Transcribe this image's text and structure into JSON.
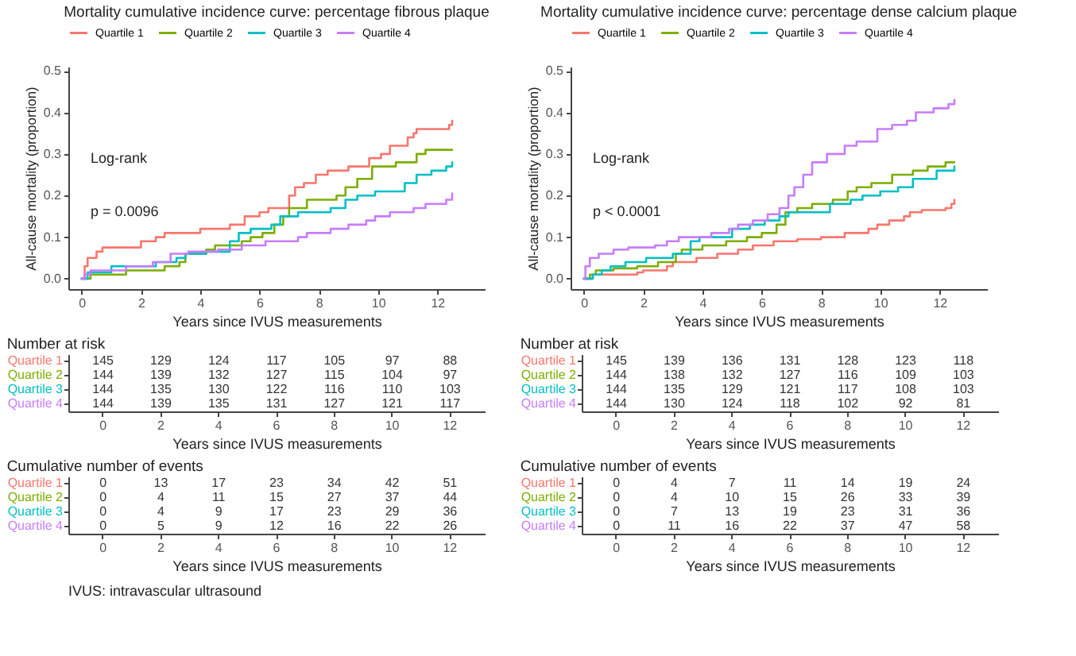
{
  "chart_data": [
    {
      "type": "step",
      "title": "Mortality cumulative incidence curve: percentage fibrous plaque",
      "xlabel": "Years since IVUS measurements",
      "ylabel": "All-cause mortality (proportion)",
      "legend": "top",
      "grid": false,
      "xlim": [
        -0.45,
        13.6
      ],
      "ylim": [
        -0.025,
        0.51
      ],
      "xticks": [
        0,
        2,
        4,
        6,
        8,
        10,
        12
      ],
      "yticks": [
        {
          "value": 0,
          "label": "0.0"
        },
        {
          "value": 0.1,
          "label": "0.1"
        },
        {
          "value": 0.2,
          "label": "0.2"
        },
        {
          "value": 0.3,
          "label": "0.3"
        },
        {
          "value": 0.4,
          "label": "0.4"
        },
        {
          "value": 0.5,
          "label": "0.5"
        }
      ],
      "annotations": [
        "Log-rank",
        "p = 0.0096"
      ],
      "series": [
        {
          "name": "Quartile 1",
          "color": "#f8766d",
          "x": [
            0,
            0.1,
            0.2,
            0.5,
            0.7,
            2,
            2.5,
            2.8,
            4,
            5,
            5.5,
            6,
            6.3,
            7,
            7.2,
            7.5,
            7.9,
            8.3,
            9,
            9.7,
            10.1,
            10.4,
            11,
            11.2,
            11.3,
            12.4,
            12.5
          ],
          "values": [
            0,
            0.03,
            0.05,
            0.065,
            0.075,
            0.09,
            0.1,
            0.11,
            0.12,
            0.13,
            0.15,
            0.16,
            0.17,
            0.2,
            0.22,
            0.23,
            0.25,
            0.26,
            0.27,
            0.29,
            0.3,
            0.32,
            0.34,
            0.35,
            0.36,
            0.37,
            0.38
          ]
        },
        {
          "name": "Quartile 2",
          "color": "#7cae00",
          "x": [
            0,
            0.3,
            1.5,
            2.8,
            3.3,
            3.5,
            4.2,
            4.5,
            5.4,
            5.7,
            6.1,
            6.5,
            6.8,
            7,
            7.6,
            8.6,
            8.9,
            9.3,
            9.8,
            10.6,
            11.3,
            11.6,
            12.5
          ],
          "values": [
            0,
            0.01,
            0.02,
            0.03,
            0.04,
            0.06,
            0.07,
            0.08,
            0.09,
            0.1,
            0.11,
            0.13,
            0.15,
            0.17,
            0.19,
            0.2,
            0.22,
            0.24,
            0.27,
            0.28,
            0.3,
            0.31,
            0.31
          ]
        },
        {
          "name": "Quartile 3",
          "color": "#00bfc4",
          "x": [
            0,
            0.2,
            1,
            2.5,
            3.2,
            3.5,
            4.2,
            5,
            5.3,
            5.7,
            6.4,
            6.7,
            7.3,
            8.4,
            8.9,
            9.3,
            9.9,
            10.9,
            11.3,
            11.8,
            12.3,
            12.5
          ],
          "values": [
            0,
            0.015,
            0.03,
            0.04,
            0.05,
            0.06,
            0.065,
            0.09,
            0.11,
            0.12,
            0.13,
            0.15,
            0.16,
            0.17,
            0.19,
            0.2,
            0.21,
            0.23,
            0.25,
            0.26,
            0.27,
            0.28
          ]
        },
        {
          "name": "Quartile 4",
          "color": "#c77cff",
          "x": [
            0,
            0.1,
            0.3,
            1.5,
            2.4,
            3,
            3.6,
            4.6,
            5.4,
            6.2,
            7.3,
            7.6,
            8.4,
            9,
            9.6,
            9.9,
            10.4,
            11.2,
            11.6,
            12.3,
            12.5
          ],
          "values": [
            0,
            0.01,
            0.02,
            0.03,
            0.04,
            0.06,
            0.065,
            0.07,
            0.08,
            0.09,
            0.1,
            0.11,
            0.12,
            0.13,
            0.14,
            0.15,
            0.16,
            0.17,
            0.18,
            0.19,
            0.205
          ]
        }
      ]
    },
    {
      "type": "step",
      "title": "Mortality cumulative incidence curve: percentage dense calcium plaque",
      "xlabel": "Years since IVUS measurements",
      "ylabel": "All-cause mortality (proportion)",
      "legend": "top",
      "grid": false,
      "xlim": [
        -0.45,
        13.6
      ],
      "ylim": [
        -0.025,
        0.51
      ],
      "xticks": [
        0,
        2,
        4,
        6,
        8,
        10,
        12
      ],
      "yticks": [
        {
          "value": 0,
          "label": "0.0"
        },
        {
          "value": 0.1,
          "label": "0.1"
        },
        {
          "value": 0.2,
          "label": "0.2"
        },
        {
          "value": 0.3,
          "label": "0.3"
        },
        {
          "value": 0.4,
          "label": "0.4"
        },
        {
          "value": 0.5,
          "label": "0.5"
        }
      ],
      "annotations": [
        "Log-rank",
        "p < 0.0001"
      ],
      "series": [
        {
          "name": "Quartile 1",
          "color": "#f8766d",
          "x": [
            0,
            0.3,
            1.8,
            2,
            2.8,
            3,
            3.8,
            4.5,
            5.2,
            5.7,
            6.4,
            7.2,
            8,
            8.8,
            9.6,
            9.9,
            10.3,
            10.8,
            11,
            11.4,
            12.2,
            12.4,
            12.5
          ],
          "values": [
            0,
            0.01,
            0.015,
            0.02,
            0.03,
            0.04,
            0.05,
            0.06,
            0.07,
            0.08,
            0.09,
            0.095,
            0.1,
            0.11,
            0.12,
            0.13,
            0.14,
            0.15,
            0.16,
            0.165,
            0.17,
            0.18,
            0.19
          ]
        },
        {
          "name": "Quartile 2",
          "color": "#7cae00",
          "x": [
            0,
            0.2,
            0.4,
            1,
            1.8,
            2.5,
            3.1,
            3.3,
            4,
            4.8,
            5.5,
            6,
            6.5,
            6.8,
            7.2,
            7.7,
            8.4,
            8.9,
            9.2,
            9.7,
            10.4,
            11.1,
            11.6,
            12.2,
            12.5
          ],
          "values": [
            0,
            0.01,
            0.02,
            0.025,
            0.03,
            0.04,
            0.06,
            0.07,
            0.08,
            0.09,
            0.1,
            0.11,
            0.13,
            0.16,
            0.17,
            0.18,
            0.19,
            0.21,
            0.22,
            0.23,
            0.25,
            0.26,
            0.27,
            0.28,
            0.28
          ]
        },
        {
          "name": "Quartile 3",
          "color": "#00bfc4",
          "x": [
            0,
            0.3,
            0.6,
            0.9,
            1.4,
            2.1,
            3,
            3.6,
            3.9,
            5,
            5.6,
            6.1,
            6.6,
            6.9,
            8.1,
            8.3,
            9,
            9.4,
            10,
            10.6,
            11.1,
            11.9,
            12.5
          ],
          "values": [
            0,
            0.01,
            0.02,
            0.03,
            0.04,
            0.05,
            0.06,
            0.09,
            0.1,
            0.12,
            0.13,
            0.14,
            0.15,
            0.16,
            0.16,
            0.18,
            0.19,
            0.2,
            0.21,
            0.22,
            0.24,
            0.26,
            0.27
          ]
        },
        {
          "name": "Quartile 4",
          "color": "#c77cff",
          "x": [
            0,
            0.05,
            0.2,
            0.5,
            1,
            1.5,
            2.4,
            2.8,
            3.2,
            4.3,
            4.9,
            5.2,
            5.7,
            6.2,
            6.6,
            6.9,
            7.1,
            7.4,
            7.7,
            8.2,
            8.8,
            9.2,
            9.9,
            10.4,
            10.9,
            11.2,
            11.8,
            12.3,
            12.5
          ],
          "values": [
            0,
            0.03,
            0.05,
            0.06,
            0.07,
            0.075,
            0.08,
            0.09,
            0.1,
            0.11,
            0.12,
            0.13,
            0.14,
            0.155,
            0.17,
            0.2,
            0.22,
            0.25,
            0.28,
            0.3,
            0.32,
            0.33,
            0.36,
            0.37,
            0.38,
            0.4,
            0.41,
            0.42,
            0.43
          ]
        }
      ]
    },
    {
      "type": "heatmap",
      "title": "Number at risk",
      "xlabel": "Years since IVUS measurements",
      "data_labels": true,
      "categories": [
        "0",
        "2",
        "4",
        "6",
        "8",
        "10",
        "12"
      ],
      "y_categories": [
        "Quartile 1",
        "Quartile 2",
        "Quartile 3",
        "Quartile 4"
      ],
      "colors": [
        "#f8766d",
        "#7cae00",
        "#00bfc4",
        "#c77cff"
      ],
      "cells": [
        [
          145,
          129,
          124,
          117,
          105,
          97,
          88
        ],
        [
          144,
          139,
          132,
          127,
          115,
          104,
          97
        ],
        [
          144,
          135,
          130,
          122,
          116,
          110,
          103
        ],
        [
          144,
          139,
          135,
          131,
          127,
          121,
          117
        ]
      ]
    },
    {
      "type": "heatmap",
      "title": "Number at risk",
      "xlabel": "Years since IVUS measurements",
      "data_labels": true,
      "categories": [
        "0",
        "2",
        "4",
        "6",
        "8",
        "10",
        "12"
      ],
      "y_categories": [
        "Quartile 1",
        "Quartile 2",
        "Quartile 3",
        "Quartile 4"
      ],
      "colors": [
        "#f8766d",
        "#7cae00",
        "#00bfc4",
        "#c77cff"
      ],
      "cells": [
        [
          145,
          139,
          136,
          131,
          128,
          123,
          118
        ],
        [
          144,
          138,
          132,
          127,
          116,
          109,
          103
        ],
        [
          144,
          135,
          129,
          121,
          117,
          108,
          103
        ],
        [
          144,
          130,
          124,
          118,
          102,
          92,
          81
        ]
      ]
    },
    {
      "type": "heatmap",
      "title": "Cumulative number of events",
      "xlabel": "Years since IVUS measurements",
      "data_labels": true,
      "categories": [
        "0",
        "2",
        "4",
        "6",
        "8",
        "10",
        "12"
      ],
      "y_categories": [
        "Quartile 1",
        "Quartile 2",
        "Quartile 3",
        "Quartile 4"
      ],
      "colors": [
        "#f8766d",
        "#7cae00",
        "#00bfc4",
        "#c77cff"
      ],
      "cells": [
        [
          0,
          13,
          17,
          23,
          34,
          42,
          51
        ],
        [
          0,
          4,
          11,
          15,
          27,
          37,
          44
        ],
        [
          0,
          4,
          9,
          17,
          23,
          29,
          36
        ],
        [
          0,
          5,
          9,
          12,
          16,
          22,
          26
        ]
      ]
    },
    {
      "type": "heatmap",
      "title": "Cumulative number of events",
      "xlabel": "Years since IVUS measurements",
      "data_labels": true,
      "categories": [
        "0",
        "2",
        "4",
        "6",
        "8",
        "10",
        "12"
      ],
      "y_categories": [
        "Quartile 1",
        "Quartile 2",
        "Quartile 3",
        "Quartile 4"
      ],
      "colors": [
        "#f8766d",
        "#7cae00",
        "#00bfc4",
        "#c77cff"
      ],
      "cells": [
        [
          0,
          4,
          7,
          11,
          14,
          19,
          24
        ],
        [
          0,
          4,
          10,
          15,
          26,
          33,
          39
        ],
        [
          0,
          7,
          13,
          19,
          23,
          31,
          36
        ],
        [
          0,
          11,
          16,
          22,
          37,
          47,
          58
        ]
      ]
    },
    {
      "type": "other",
      "annotations": [
        "IVUS: intravascular ultrasound"
      ]
    }
  ]
}
